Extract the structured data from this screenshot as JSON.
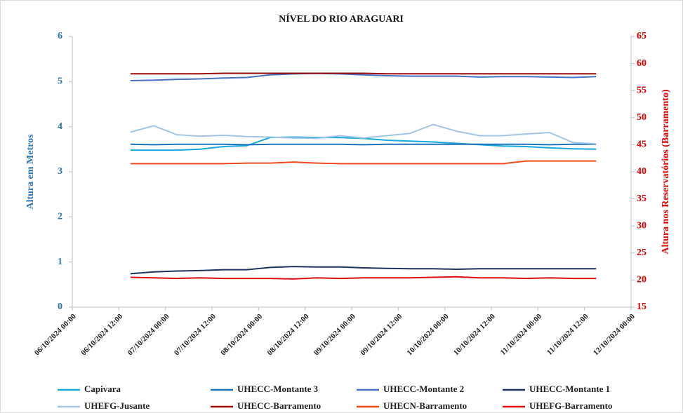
{
  "chart_data": {
    "type": "line",
    "title": "NÍVEL DO RIO ARAGUARI",
    "y_label": "Altura em Metros",
    "y2_label": "Altura nos Reservatórios (Barramento)",
    "x": [
      "06/10/2024 15:00",
      "06/10/2024 21:00",
      "07/10/2024 03:00",
      "07/10/2024 09:00",
      "07/10/2024 15:00",
      "07/10/2024 21:00",
      "08/10/2024 03:00",
      "08/10/2024 09:00",
      "08/10/2024 15:00",
      "08/10/2024 21:00",
      "09/10/2024 03:00",
      "09/10/2024 09:00",
      "09/10/2024 15:00",
      "09/10/2024 21:00",
      "10/10/2024 03:00",
      "10/10/2024 09:00",
      "10/10/2024 15:00",
      "10/10/2024 21:00",
      "11/10/2024 03:00",
      "11/10/2024 09:00",
      "11/10/2024 15:00"
    ],
    "xlim": [
      "06/10/2024 00:00",
      "12/10/2024 00:00"
    ],
    "xticks": [
      "06/10/2024 00:00",
      "06/10/2024 12:00",
      "07/10/2024 00:00",
      "07/10/2024 12:00",
      "08/10/2024 00:00",
      "08/10/2024 12:00",
      "09/10/2024 00:00",
      "09/10/2024 12:00",
      "10/10/2024 00:00",
      "10/10/2024 12:00",
      "11/10/2024 00:00",
      "11/10/2024 12:00",
      "12/10/2024 00:00"
    ],
    "ylim": [
      0,
      6
    ],
    "yticks": [
      0,
      1,
      2,
      3,
      4,
      5,
      6
    ],
    "y2lim": [
      15,
      65
    ],
    "y2ticks": [
      15,
      20,
      25,
      30,
      35,
      40,
      45,
      50,
      55,
      60,
      65
    ],
    "grid": false,
    "legend": "bottom",
    "series": [
      {
        "name": "Capivara",
        "color": "#17a9dc",
        "values": [
          3.48,
          3.48,
          3.48,
          3.5,
          3.56,
          3.58,
          3.76,
          3.77,
          3.76,
          3.76,
          3.74,
          3.7,
          3.68,
          3.66,
          3.63,
          3.6,
          3.57,
          3.56,
          3.53,
          3.51,
          3.5
        ]
      },
      {
        "name": "UHECC-Montante 3",
        "color": "#1f72b8",
        "values": [
          3.61,
          3.6,
          3.61,
          3.61,
          3.61,
          3.6,
          3.61,
          3.61,
          3.61,
          3.61,
          3.6,
          3.61,
          3.61,
          3.61,
          3.61,
          3.61,
          3.61,
          3.61,
          3.6,
          3.61,
          3.61
        ]
      },
      {
        "name": "UHECC-Montante 2",
        "color": "#4a72c2",
        "values": [
          5.02,
          5.03,
          5.05,
          5.06,
          5.08,
          5.09,
          5.15,
          5.17,
          5.18,
          5.17,
          5.15,
          5.13,
          5.12,
          5.12,
          5.12,
          5.1,
          5.11,
          5.11,
          5.1,
          5.09,
          5.11
        ]
      },
      {
        "name": "UHECC-Montante 1",
        "color": "#1f3260",
        "values": [
          0.74,
          0.78,
          0.8,
          0.81,
          0.83,
          0.83,
          0.88,
          0.9,
          0.89,
          0.89,
          0.87,
          0.86,
          0.85,
          0.85,
          0.84,
          0.85,
          0.85,
          0.85,
          0.85,
          0.85,
          0.85
        ]
      },
      {
        "name": "UHEFG-Jusante",
        "color": "#a3c6e6",
        "values": [
          3.88,
          4.02,
          3.82,
          3.79,
          3.81,
          3.78,
          3.77,
          3.75,
          3.74,
          3.8,
          3.75,
          3.8,
          3.85,
          4.05,
          3.9,
          3.8,
          3.8,
          3.84,
          3.87,
          3.65,
          3.62
        ]
      },
      {
        "name": "UHECC-Barramento",
        "color": "#9a0a0a",
        "axis": "y2",
        "values": [
          58.1,
          58.1,
          58.1,
          58.1,
          58.2,
          58.2,
          58.2,
          58.2,
          58.2,
          58.2,
          58.2,
          58.1,
          58.1,
          58.1,
          58.1,
          58.1,
          58.1,
          58.1,
          58.1,
          58.1,
          58.1
        ]
      },
      {
        "name": "UHECN-Barramento",
        "color": "#f24a1c",
        "axis": "y2",
        "values": [
          41.5,
          41.5,
          41.5,
          41.5,
          41.5,
          41.6,
          41.6,
          41.8,
          41.6,
          41.5,
          41.5,
          41.5,
          41.5,
          41.5,
          41.5,
          41.5,
          41.5,
          42.0,
          42.0,
          42.0,
          42.0
        ]
      },
      {
        "name": "UHEFG-Barramento",
        "color": "#e01010",
        "axis": "y2",
        "values": [
          20.5,
          20.4,
          20.3,
          20.4,
          20.3,
          20.3,
          20.3,
          20.2,
          20.4,
          20.3,
          20.4,
          20.4,
          20.4,
          20.5,
          20.6,
          20.4,
          20.4,
          20.3,
          20.4,
          20.3,
          20.3
        ]
      }
    ]
  }
}
